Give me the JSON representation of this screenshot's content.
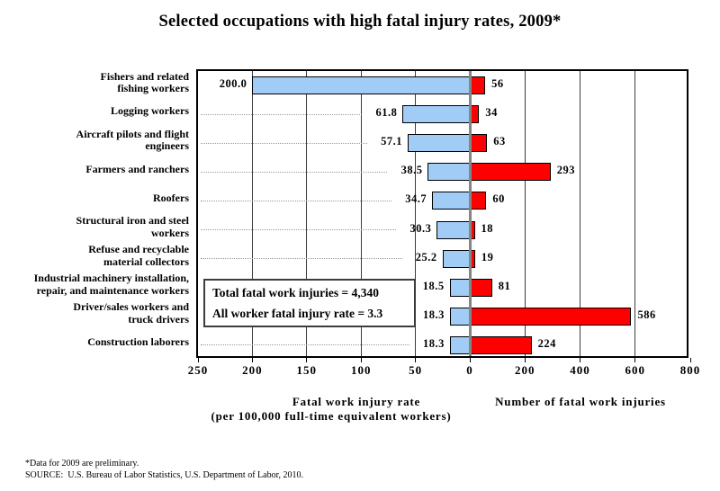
{
  "title": "Selected occupations with high fatal injury rates, 2009*",
  "chart_data": {
    "type": "bar",
    "orientation": "horizontal-bidirectional",
    "left_axis": {
      "caption_line1": "Fatal work injury rate",
      "caption_line2": "(per 100,000 full-time equivalent workers)",
      "ticks": [
        250,
        200,
        150,
        100,
        50,
        0
      ],
      "range": [
        0,
        250
      ],
      "direction": "increasing-leftward"
    },
    "right_axis": {
      "caption": "Number of fatal work injuries",
      "ticks": [
        200,
        400,
        600,
        800
      ],
      "range": [
        0,
        800
      ],
      "direction": "increasing-rightward"
    },
    "series": [
      {
        "name": "Fatal work injury rate",
        "color": "#A0CCF5"
      },
      {
        "name": "Number of fatal work injuries",
        "color": "#FF0000"
      }
    ],
    "rows": [
      {
        "label_lines": [
          "Fishers and related",
          "fishing workers"
        ],
        "rate": 200.0,
        "rate_label": "200.0",
        "count": 56,
        "leader": false
      },
      {
        "label_lines": [
          "Logging workers"
        ],
        "rate": 61.8,
        "rate_label": "61.8",
        "count": 34,
        "leader": true
      },
      {
        "label_lines": [
          "Aircraft pilots and flight",
          "engineers"
        ],
        "rate": 57.1,
        "rate_label": "57.1",
        "count": 63,
        "leader": true
      },
      {
        "label_lines": [
          "Farmers and ranchers"
        ],
        "rate": 38.5,
        "rate_label": "38.5",
        "count": 293,
        "leader": true
      },
      {
        "label_lines": [
          "Roofers"
        ],
        "rate": 34.7,
        "rate_label": "34.7",
        "count": 60,
        "leader": true
      },
      {
        "label_lines": [
          "Structural iron and steel",
          "workers"
        ],
        "rate": 30.3,
        "rate_label": "30.3",
        "count": 18,
        "leader": true
      },
      {
        "label_lines": [
          "Refuse and recyclable",
          "material collectors"
        ],
        "rate": 25.2,
        "rate_label": "25.2",
        "count": 19,
        "leader": true
      },
      {
        "label_lines": [
          "Industrial machinery installation,",
          "repair, and maintenance workers"
        ],
        "rate": 18.5,
        "rate_label": "18.5",
        "count": 81,
        "leader": false
      },
      {
        "label_lines": [
          "Driver/sales workers and",
          "truck drivers"
        ],
        "rate": 18.3,
        "rate_label": "18.3",
        "count": 586,
        "leader": false
      },
      {
        "label_lines": [
          "Construction laborers"
        ],
        "rate": 18.3,
        "rate_label": "18.3",
        "count": 224,
        "leader": true
      }
    ],
    "annotation_box": {
      "lines": [
        "Total fatal work injuries = 4,340",
        "All worker fatal injury rate = 3.3"
      ]
    }
  },
  "footnotes": [
    "*Data for 2009 are preliminary.",
    "SOURCE:  U.S. Bureau of Labor Statistics, U.S. Department of Labor, 2010."
  ],
  "colors": {
    "rate_bar": "#A0CCF5",
    "count_bar": "#FF0000",
    "bar_border": "#000000",
    "gridline": "#3d3d3d",
    "zero_line": "#858585",
    "frame": "#000000",
    "background": "#ffffff"
  }
}
